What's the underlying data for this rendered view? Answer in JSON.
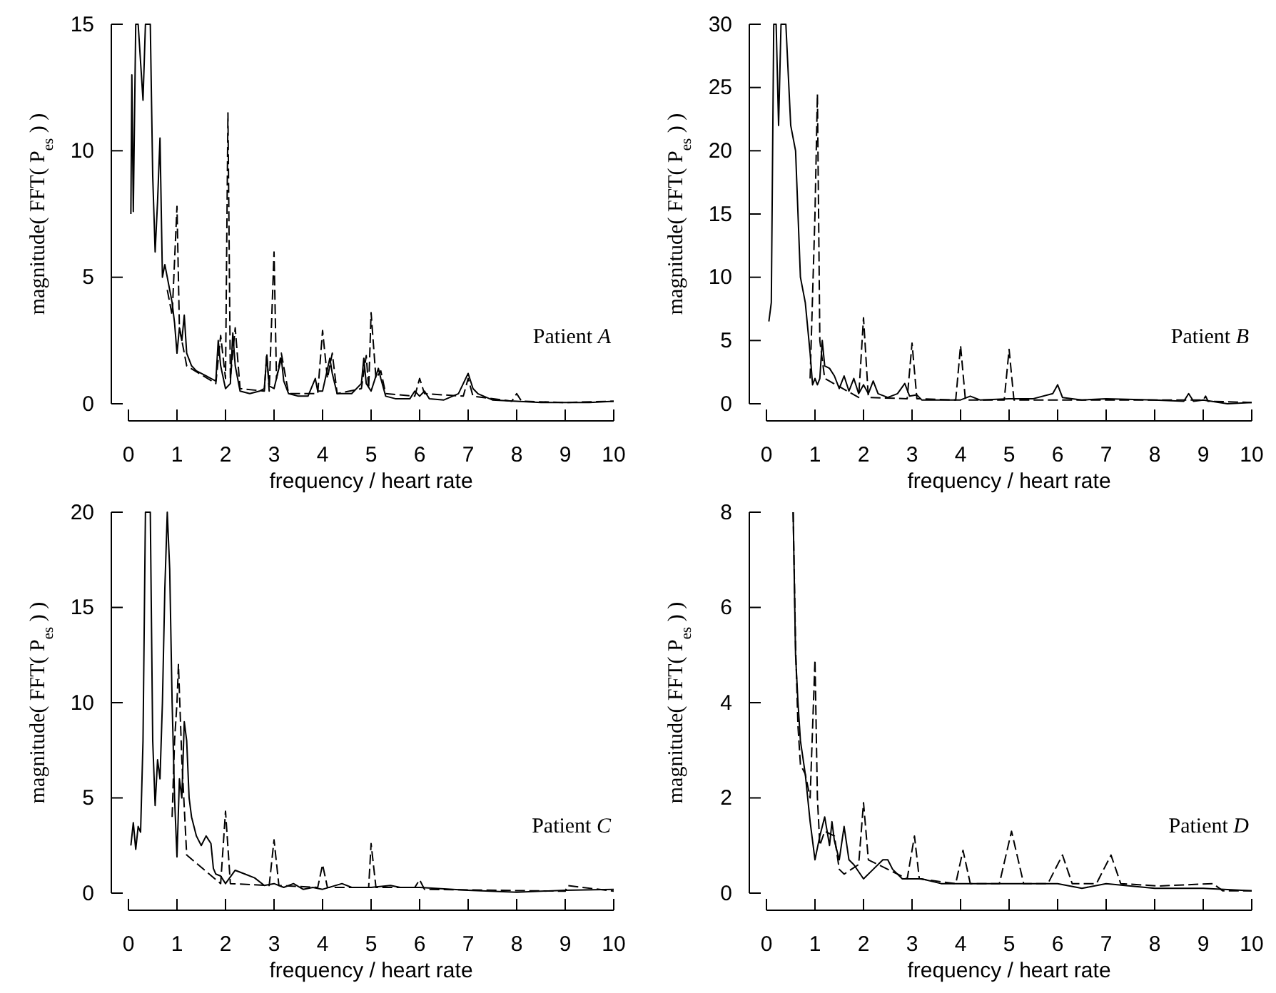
{
  "chart_data": [
    {
      "type": "line",
      "xlabel": "frequency / heart rate",
      "ylabel": "magnitude( FFT( P$_{es}$ ) )",
      "annotations": [
        "Patient A"
      ],
      "xlim": [
        0,
        10
      ],
      "xticks": [
        0,
        1,
        2,
        3,
        4,
        5,
        6,
        7,
        8,
        9,
        10
      ],
      "ylim": [
        0,
        15
      ],
      "yticks": [
        0,
        5,
        10,
        15
      ],
      "series": [
        {
          "color": "#000000",
          "line_style": "solid",
          "x": [
            0.05,
            0.07,
            0.1,
            0.15,
            0.2,
            0.3,
            0.35,
            0.45,
            0.5,
            0.55,
            0.6,
            0.65,
            0.7,
            0.75,
            0.8,
            0.9,
            0.95,
            1.0,
            1.05,
            1.1,
            1.15,
            1.2,
            1.3,
            1.4,
            1.5,
            1.6,
            1.7,
            1.8,
            1.85,
            1.9,
            2.0,
            2.1,
            2.15,
            2.2,
            2.3,
            2.5,
            2.7,
            2.8,
            2.85,
            2.9,
            3.0,
            3.15,
            3.2,
            3.3,
            3.5,
            3.7,
            3.85,
            3.9,
            4.0,
            4.15,
            4.2,
            4.3,
            4.6,
            4.8,
            4.85,
            4.9,
            5.0,
            5.15,
            5.2,
            5.3,
            5.5,
            5.8,
            5.9,
            6.0,
            6.1,
            6.2,
            6.5,
            6.8,
            6.9,
            7.0,
            7.1,
            7.2,
            7.5,
            8.0,
            8.5,
            9.0,
            9.5,
            10
          ],
          "values": [
            7.5,
            13,
            7.6,
            15,
            15,
            12,
            15,
            15,
            9,
            6,
            8,
            10.5,
            5,
            5.5,
            5,
            4,
            3.2,
            2,
            3,
            2.5,
            3.5,
            2,
            1.5,
            1.3,
            1.2,
            1.1,
            1.0,
            0.9,
            2.5,
            1.5,
            0.6,
            0.8,
            2.8,
            1.5,
            0.5,
            0.4,
            0.5,
            0.6,
            1.9,
            0.7,
            0.6,
            1.8,
            0.9,
            0.4,
            0.3,
            0.3,
            1.0,
            0.5,
            0.5,
            1.8,
            1.2,
            0.4,
            0.4,
            0.8,
            1.8,
            0.8,
            0.5,
            1.4,
            1.0,
            0.3,
            0.2,
            0.2,
            0.5,
            0.3,
            0.5,
            0.2,
            0.15,
            0.4,
            0.8,
            1.2,
            0.6,
            0.4,
            0.15,
            0.1,
            0.05,
            0.05,
            0.05,
            0.1
          ]
        },
        {
          "color": "#000000",
          "line_style": "dashed",
          "x": [
            0.8,
            0.9,
            1.0,
            1.05,
            1.2,
            1.8,
            1.9,
            2.0,
            2.05,
            2.1,
            2.2,
            2.3,
            2.8,
            2.85,
            2.9,
            3.0,
            3.05,
            3.15,
            3.3,
            3.9,
            4.0,
            4.1,
            4.2,
            4.3,
            4.8,
            4.9,
            4.95,
            5.0,
            5.1,
            5.2,
            5.3,
            5.9,
            6.0,
            6.1,
            6.9,
            7.0,
            7.1,
            7.9,
            8.0,
            8.1,
            9.0,
            10
          ],
          "values": [
            4.5,
            3.5,
            7.8,
            3,
            1.5,
            0.8,
            2.7,
            1,
            11.5,
            1,
            3,
            0.6,
            0.5,
            2,
            0.5,
            6,
            1,
            2,
            0.4,
            0.4,
            2.9,
            1,
            2,
            0.4,
            0.6,
            1.9,
            0.6,
            3.6,
            1,
            1.3,
            0.4,
            0.3,
            1.0,
            0.4,
            0.3,
            1.0,
            0.3,
            0.1,
            0.4,
            0.1,
            0.05,
            0.1
          ]
        }
      ]
    },
    {
      "type": "line",
      "xlabel": "frequency / heart rate",
      "ylabel": "magnitude( FFT( P$_{es}$ ) )",
      "annotations": [
        "Patient B"
      ],
      "xlim": [
        0,
        10
      ],
      "xticks": [
        0,
        1,
        2,
        3,
        4,
        5,
        6,
        7,
        8,
        9,
        10
      ],
      "ylim": [
        0,
        30
      ],
      "yticks": [
        0,
        5,
        10,
        15,
        20,
        25,
        30
      ],
      "series": [
        {
          "color": "#000000",
          "line_style": "solid",
          "x": [
            0.05,
            0.1,
            0.15,
            0.2,
            0.25,
            0.3,
            0.4,
            0.5,
            0.55,
            0.6,
            0.7,
            0.8,
            0.9,
            0.95,
            1.0,
            1.05,
            1.1,
            1.15,
            1.2,
            1.3,
            1.4,
            1.5,
            1.6,
            1.7,
            1.8,
            1.9,
            2.0,
            2.1,
            2.2,
            2.3,
            2.5,
            2.7,
            2.85,
            2.95,
            3.1,
            3.2,
            3.5,
            4.0,
            4.2,
            4.4,
            5.0,
            5.5,
            5.9,
            6.0,
            6.1,
            6.5,
            7.0,
            8.0,
            8.6,
            8.7,
            8.8,
            9.0,
            9.5,
            10
          ],
          "values": [
            6.5,
            8,
            30,
            30,
            22,
            30,
            30,
            22,
            21,
            20,
            10,
            8,
            4,
            1.5,
            2,
            1.5,
            2,
            5,
            3,
            2.8,
            2.2,
            1.2,
            2.2,
            1.0,
            2,
            0.8,
            1.5,
            0.8,
            1.8,
            0.8,
            0.5,
            0.8,
            1.6,
            0.6,
            0.7,
            0.3,
            0.3,
            0.3,
            0.6,
            0.3,
            0.4,
            0.4,
            0.8,
            1.5,
            0.5,
            0.3,
            0.4,
            0.3,
            0.2,
            0.8,
            0.2,
            0.3,
            0.0,
            0.1
          ]
        },
        {
          "color": "#000000",
          "line_style": "dashed",
          "x": [
            0.9,
            1.0,
            1.05,
            1.1,
            1.2,
            1.9,
            2.0,
            2.1,
            2.9,
            3.0,
            3.1,
            3.9,
            4.0,
            4.1,
            4.9,
            5.0,
            5.1,
            6.0,
            9.0,
            9.05,
            9.1,
            10
          ],
          "values": [
            2,
            15,
            24.5,
            5,
            2,
            0.5,
            6.8,
            0.5,
            0.4,
            4.8,
            0.4,
            0.3,
            4.6,
            0.3,
            0.3,
            4.3,
            0.3,
            0.3,
            0.3,
            0.6,
            0.2,
            0.1
          ]
        }
      ]
    },
    {
      "type": "line",
      "xlabel": "frequency / heart rate",
      "ylabel": "magnitude( FFT( P$_{es}$ ) )",
      "annotations": [
        "Patient C"
      ],
      "xlim": [
        0,
        10
      ],
      "xticks": [
        0,
        1,
        2,
        3,
        4,
        5,
        6,
        7,
        8,
        9,
        10
      ],
      "ylim": [
        0,
        20
      ],
      "yticks": [
        0,
        5,
        10,
        15,
        20
      ],
      "series": [
        {
          "color": "#000000",
          "line_style": "solid",
          "x": [
            0.05,
            0.1,
            0.15,
            0.2,
            0.25,
            0.3,
            0.35,
            0.45,
            0.5,
            0.55,
            0.6,
            0.65,
            0.7,
            0.75,
            0.8,
            0.85,
            0.9,
            0.95,
            1.0,
            1.05,
            1.1,
            1.15,
            1.2,
            1.25,
            1.3,
            1.4,
            1.5,
            1.6,
            1.7,
            1.75,
            1.8,
            1.9,
            2.0,
            2.2,
            2.4,
            2.6,
            2.8,
            3.0,
            3.2,
            3.4,
            3.6,
            3.8,
            4.0,
            4.4,
            4.6,
            5.0,
            5.4,
            5.6,
            6.0,
            7.0,
            8.0,
            9.0,
            10
          ],
          "values": [
            2.5,
            3.7,
            2.3,
            3.5,
            3.2,
            8,
            20,
            20,
            8,
            4.6,
            7,
            6,
            10,
            16,
            20,
            17,
            10,
            5,
            1.9,
            6,
            5,
            9,
            8,
            5,
            4,
            3,
            2.5,
            3,
            2.6,
            1.3,
            1.0,
            0.9,
            0.5,
            1.2,
            1.0,
            0.8,
            0.4,
            0.5,
            0.3,
            0.5,
            0.2,
            0.3,
            0.2,
            0.5,
            0.3,
            0.3,
            0.4,
            0.3,
            0.3,
            0.15,
            0.05,
            0.15,
            0.2
          ]
        },
        {
          "color": "#000000",
          "line_style": "dashed",
          "x": [
            0.9,
            0.95,
            1.0,
            1.03,
            1.1,
            1.2,
            1.9,
            2.0,
            2.1,
            2.9,
            3.0,
            3.1,
            3.9,
            4.0,
            4.1,
            4.95,
            5.0,
            5.1,
            5.9,
            6.0,
            6.1,
            9.0,
            9.05,
            10
          ],
          "values": [
            4,
            8,
            10,
            12,
            7,
            2,
            0.5,
            4.3,
            0.5,
            0.4,
            2.8,
            0.4,
            0.3,
            1.5,
            0.3,
            0.3,
            2.6,
            0.3,
            0.3,
            0.7,
            0.2,
            0.1,
            0.4,
            0.1
          ]
        }
      ]
    },
    {
      "type": "line",
      "xlabel": "frequency / heart rate",
      "ylabel": "magnitude( FFT( P$_{es}$ ) )",
      "annotations": [
        "Patient D"
      ],
      "xlim": [
        0,
        10
      ],
      "xticks": [
        0,
        1,
        2,
        3,
        4,
        5,
        6,
        7,
        8,
        9,
        10
      ],
      "ylim": [
        0,
        8
      ],
      "yticks": [
        0,
        2,
        4,
        6,
        8
      ],
      "series": [
        {
          "color": "#000000",
          "line_style": "solid",
          "x": [
            0.55,
            0.6,
            0.65,
            0.7,
            0.8,
            0.9,
            1.0,
            1.1,
            1.2,
            1.3,
            1.35,
            1.4,
            1.5,
            1.6,
            1.7,
            1.8,
            2.0,
            2.2,
            2.4,
            2.5,
            2.6,
            2.8,
            3.2,
            3.6,
            4.0,
            5.0,
            6.0,
            6.5,
            7.0,
            8.0,
            9.0,
            10
          ],
          "values": [
            8,
            5,
            4,
            3.2,
            2.5,
            1.5,
            0.7,
            1.2,
            1.6,
            1.0,
            1.5,
            1.1,
            0.7,
            1.4,
            0.7,
            0.6,
            0.3,
            0.5,
            0.7,
            0.7,
            0.5,
            0.3,
            0.3,
            0.2,
            0.2,
            0.2,
            0.2,
            0.1,
            0.2,
            0.1,
            0.1,
            0.05
          ]
        },
        {
          "color": "#000000",
          "line_style": "dashed",
          "x": [
            0.55,
            0.6,
            0.65,
            0.7,
            0.8,
            0.9,
            1.0,
            1.05,
            1.1,
            1.2,
            1.4,
            1.5,
            1.6,
            1.9,
            2.0,
            2.1,
            2.5,
            2.9,
            3.05,
            3.15,
            3.9,
            4.05,
            4.2,
            4.8,
            5.05,
            5.3,
            5.8,
            6.1,
            6.3,
            6.8,
            7.1,
            7.3,
            8.1,
            9.2,
            9.4,
            10
          ],
          "values": [
            8,
            5.2,
            3.5,
            2.7,
            2.5,
            2,
            4.9,
            2,
            1.0,
            1.3,
            1.2,
            0.5,
            0.4,
            0.6,
            1.9,
            0.7,
            0.5,
            0.3,
            1.2,
            0.3,
            0.2,
            0.9,
            0.2,
            0.2,
            1.3,
            0.2,
            0.2,
            0.8,
            0.2,
            0.2,
            0.8,
            0.2,
            0.15,
            0.2,
            0.05,
            0.05
          ]
        }
      ]
    }
  ]
}
